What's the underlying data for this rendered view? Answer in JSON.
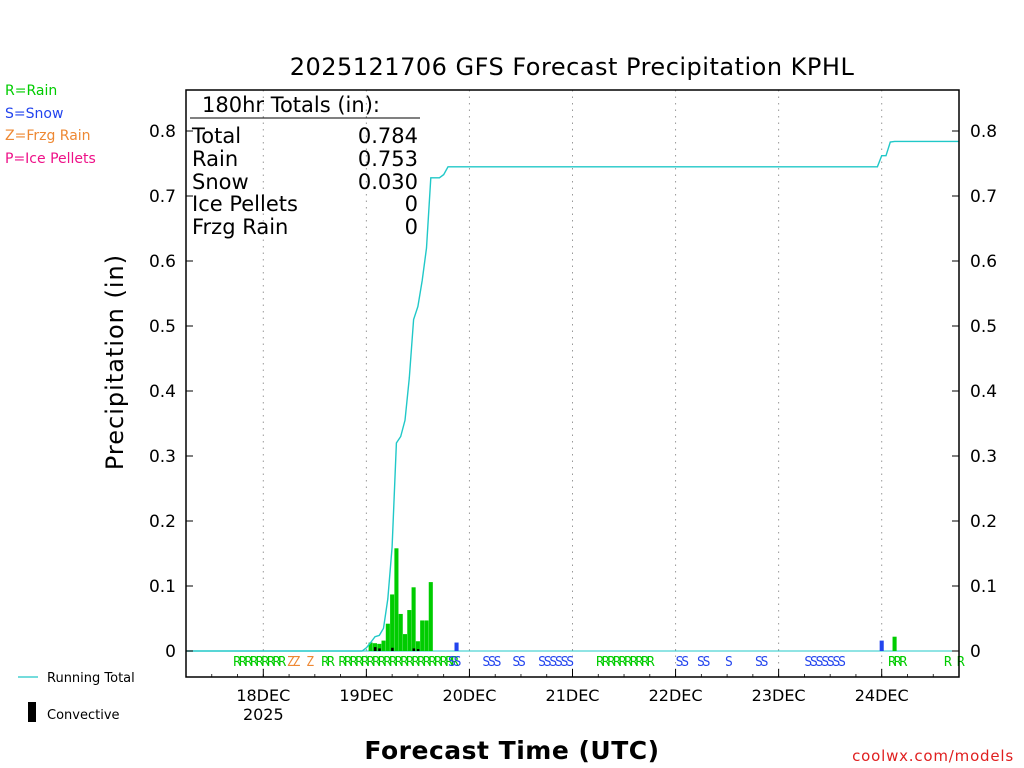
{
  "chart_data": {
    "type": "bar",
    "title": "2025121706 GFS Forecast Precipitation KPHL",
    "xlabel": "Forecast Time (UTC)",
    "ylabel": "Precipitation (in)",
    "ylim": [
      0,
      0.87
    ],
    "y_ticks": [
      0,
      0.1,
      0.2,
      0.3,
      0.4,
      0.5,
      0.6,
      0.7,
      0.8
    ],
    "y_tick_labels": [
      "0",
      "0.1",
      "0.2",
      "0.3",
      "0.4",
      "0.5",
      "0.6",
      "0.7",
      "0.8"
    ],
    "xlim_hours": [
      0,
      180
    ],
    "date_ticks": [
      {
        "hour": 18,
        "label": "18DEC",
        "sublabel": "2025"
      },
      {
        "hour": 42,
        "label": "19DEC",
        "sublabel": ""
      },
      {
        "hour": 66,
        "label": "20DEC",
        "sublabel": ""
      },
      {
        "hour": 90,
        "label": "21DEC",
        "sublabel": ""
      },
      {
        "hour": 114,
        "label": "22DEC",
        "sublabel": ""
      },
      {
        "hour": 138,
        "label": "23DEC",
        "sublabel": ""
      },
      {
        "hour": 162,
        "label": "24DEC",
        "sublabel": ""
      }
    ],
    "legend": {
      "rain": "R=Rain",
      "snow": "S=Snow",
      "frzg_rain": "Z=Frzg Rain",
      "ice_pellets": "P=Ice Pellets"
    },
    "bottom_legend": {
      "running_total": "Running Total",
      "convective": "Convective"
    },
    "totals_box": {
      "header": "180hr Totals (in):",
      "rows": [
        {
          "label": "Total",
          "value": "0.784"
        },
        {
          "label": "Rain",
          "value": "0.753"
        },
        {
          "label": "Snow",
          "value": "0.030"
        },
        {
          "label": "Ice Pellets",
          "value": "0"
        },
        {
          "label": "Frzg Rain",
          "value": "0"
        }
      ]
    },
    "bars": [
      {
        "hour": 43,
        "value": 0.013,
        "type": "R"
      },
      {
        "hour": 44,
        "value": 0.012,
        "type": "R"
      },
      {
        "hour": 45,
        "value": 0.011,
        "type": "R"
      },
      {
        "hour": 46,
        "value": 0.016,
        "type": "R"
      },
      {
        "hour": 47,
        "value": 0.042,
        "type": "R"
      },
      {
        "hour": 48,
        "value": 0.087,
        "type": "R"
      },
      {
        "hour": 49,
        "value": 0.158,
        "type": "R"
      },
      {
        "hour": 50,
        "value": 0.057,
        "type": "R"
      },
      {
        "hour": 51,
        "value": 0.026,
        "type": "R"
      },
      {
        "hour": 52,
        "value": 0.063,
        "type": "R"
      },
      {
        "hour": 53,
        "value": 0.098,
        "type": "R"
      },
      {
        "hour": 54,
        "value": 0.015,
        "type": "R"
      },
      {
        "hour": 55,
        "value": 0.047,
        "type": "R"
      },
      {
        "hour": 56,
        "value": 0.047,
        "type": "R"
      },
      {
        "hour": 57,
        "value": 0.106,
        "type": "R"
      },
      {
        "hour": 63,
        "value": 0.013,
        "type": "S"
      },
      {
        "hour": 162,
        "value": 0.016,
        "type": "S"
      },
      {
        "hour": 165,
        "value": 0.022,
        "type": "R"
      }
    ],
    "convective_bars": [
      {
        "hour": 44,
        "value": 0.006
      },
      {
        "hour": 45,
        "value": 0.004
      },
      {
        "hour": 48,
        "value": 0.005
      },
      {
        "hour": 53,
        "value": 0.004
      },
      {
        "hour": 54,
        "value": 0.003
      }
    ],
    "running_total": {
      "hours": [
        0,
        41,
        42,
        43,
        44,
        45,
        46,
        47,
        48,
        49,
        50,
        51,
        52,
        53,
        54,
        55,
        56,
        57,
        58,
        59,
        60,
        61,
        62,
        63,
        64,
        160,
        161,
        162,
        163,
        164,
        165,
        166,
        167,
        180
      ],
      "values": [
        0,
        0,
        0.005,
        0.013,
        0.022,
        0.024,
        0.035,
        0.08,
        0.16,
        0.32,
        0.33,
        0.355,
        0.42,
        0.51,
        0.53,
        0.57,
        0.62,
        0.728,
        0.728,
        0.728,
        0.733,
        0.745,
        0.745,
        0.745,
        0.745,
        0.745,
        0.745,
        0.762,
        0.762,
        0.783,
        0.784,
        0.784,
        0.784,
        0.784
      ]
    },
    "ptype_row": [
      {
        "hour": 11.0,
        "text": "RRRRRRRRR",
        "type": "R"
      },
      {
        "hour": 23.5,
        "text": "ZZ",
        "type": "Z"
      },
      {
        "hour": 28.0,
        "text": "Z",
        "type": "Z"
      },
      {
        "hour": 31.5,
        "text": "RR",
        "type": "R"
      },
      {
        "hour": 35.5,
        "text": "RRRRRRRRRRRRRRRRRRRRR",
        "type": "R"
      },
      {
        "hour": 61.0,
        "text": "SS",
        "type": "S"
      },
      {
        "hour": 69.0,
        "text": "SSS",
        "type": "S"
      },
      {
        "hour": 76.0,
        "text": "SS",
        "type": "S"
      },
      {
        "hour": 82.0,
        "text": "SSSSSS",
        "type": "S"
      },
      {
        "hour": 95.5,
        "text": "RRRRRRRRRR",
        "type": "R"
      },
      {
        "hour": 114.0,
        "text": "SS",
        "type": "S"
      },
      {
        "hour": 119.0,
        "text": "SS",
        "type": "S"
      },
      {
        "hour": 125.5,
        "text": "S",
        "type": "S"
      },
      {
        "hour": 132.5,
        "text": "SS",
        "type": "S"
      },
      {
        "hour": 144.0,
        "text": "SSSSSSS",
        "type": "S"
      },
      {
        "hour": 163.5,
        "text": "RRR",
        "type": "R"
      },
      {
        "hour": 176.5,
        "text": "R",
        "type": "R"
      },
      {
        "hour": 179.5,
        "text": "R",
        "type": "R"
      }
    ],
    "colors": {
      "rain": "#00cc00",
      "snow": "#2244ee",
      "frzg_rain": "#ee8833",
      "ice_pellets": "#ee1188",
      "running_total": "#20c8c8",
      "convective": "#000000"
    },
    "credit": "coolwx.com/models"
  }
}
